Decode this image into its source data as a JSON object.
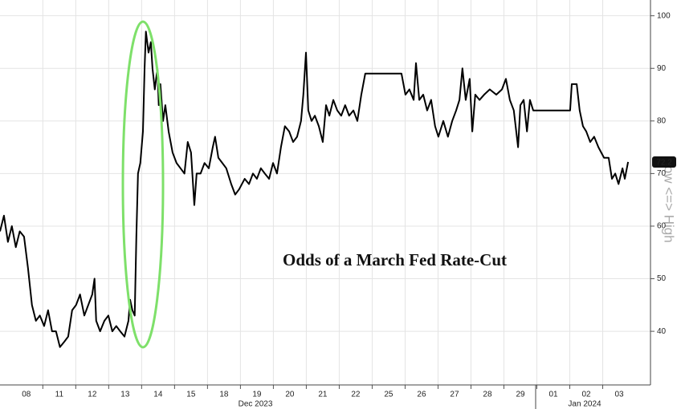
{
  "chart_data": {
    "type": "line",
    "annotation": "Odds of a March Fed Rate-Cut",
    "y_label": "Low <=> High",
    "x_group_labels": [
      "Dec 2023",
      "Jan 2024"
    ],
    "xlim": [
      -0.8,
      18.95
    ],
    "xticks": [
      {
        "value": 0,
        "label": "08"
      },
      {
        "value": 1,
        "label": "11"
      },
      {
        "value": 2,
        "label": "12"
      },
      {
        "value": 3,
        "label": "13"
      },
      {
        "value": 4,
        "label": "14"
      },
      {
        "value": 5,
        "label": "15"
      },
      {
        "value": 6,
        "label": "18"
      },
      {
        "value": 7,
        "label": "19"
      },
      {
        "value": 8,
        "label": "20"
      },
      {
        "value": 9,
        "label": "21"
      },
      {
        "value": 10,
        "label": "22"
      },
      {
        "value": 11,
        "label": "25"
      },
      {
        "value": 12,
        "label": "26"
      },
      {
        "value": 13,
        "label": "27"
      },
      {
        "value": 14,
        "label": "28"
      },
      {
        "value": 15,
        "label": "29"
      },
      {
        "value": 16,
        "label": "01"
      },
      {
        "value": 17,
        "label": "02"
      },
      {
        "value": 18,
        "label": "03"
      }
    ],
    "ylim": [
      29.8,
      103
    ],
    "yticks": [
      40,
      50,
      60,
      70,
      80,
      90,
      100
    ],
    "grid": true,
    "series": [
      {
        "name": "Odds",
        "color": "#000000",
        "x": [
          -0.8,
          -0.68,
          -0.56,
          -0.44,
          -0.32,
          -0.2,
          -0.07,
          0.05,
          0.17,
          0.29,
          0.41,
          0.54,
          0.66,
          0.78,
          0.9,
          1.02,
          1.15,
          1.27,
          1.39,
          1.51,
          1.63,
          1.76,
          1.88,
          2.0,
          2.07,
          2.12,
          2.24,
          2.37,
          2.49,
          2.61,
          2.73,
          2.85,
          2.98,
          3.1,
          3.15,
          3.22,
          3.29,
          3.34,
          3.39,
          3.46,
          3.54,
          3.59,
          3.63,
          3.71,
          3.78,
          3.83,
          3.9,
          3.98,
          4.02,
          4.07,
          4.15,
          4.22,
          4.32,
          4.44,
          4.56,
          4.68,
          4.8,
          4.9,
          5.0,
          5.1,
          5.17,
          5.29,
          5.41,
          5.54,
          5.66,
          5.73,
          5.83,
          5.95,
          6.07,
          6.22,
          6.34,
          6.46,
          6.63,
          6.76,
          6.88,
          7.0,
          7.12,
          7.24,
          7.37,
          7.49,
          7.61,
          7.73,
          7.85,
          7.98,
          8.1,
          8.22,
          8.34,
          8.41,
          8.49,
          8.56,
          8.66,
          8.76,
          8.88,
          9.0,
          9.1,
          9.2,
          9.32,
          9.44,
          9.56,
          9.68,
          9.8,
          9.93,
          10.05,
          10.17,
          10.29,
          10.41,
          11.39,
          11.51,
          11.63,
          11.76,
          11.83,
          11.93,
          12.05,
          12.17,
          12.29,
          12.41,
          12.51,
          12.66,
          12.8,
          12.93,
          13.05,
          13.15,
          13.24,
          13.34,
          13.46,
          13.54,
          13.63,
          13.76,
          13.9,
          14.07,
          14.27,
          14.44,
          14.56,
          14.68,
          14.8,
          14.93,
          15.0,
          15.1,
          15.2,
          15.29,
          15.39,
          16.51,
          16.56,
          16.71,
          16.8,
          16.9,
          17.0,
          17.12,
          17.24,
          17.37,
          17.54,
          17.68,
          17.78,
          17.88,
          17.98,
          18.1,
          18.17,
          18.27
        ],
        "values": [
          59,
          62,
          57,
          60,
          56,
          59,
          58,
          52,
          45,
          42,
          43,
          41,
          44,
          40,
          40,
          37,
          38,
          39,
          44,
          45,
          47,
          43,
          45,
          47,
          50,
          42,
          40,
          42,
          43,
          40,
          41,
          40,
          39,
          42,
          46,
          44,
          43,
          58,
          70,
          72,
          78,
          90,
          97,
          93,
          95,
          90,
          86,
          90,
          83,
          87,
          80,
          83,
          78,
          74,
          72,
          71,
          70,
          76,
          74,
          64,
          70,
          70,
          72,
          71,
          75,
          77,
          73,
          72,
          71,
          68,
          66,
          67,
          69,
          68,
          70,
          69,
          71,
          70,
          69,
          72,
          70,
          75,
          79,
          78,
          76,
          77,
          80,
          85,
          93,
          82,
          80,
          81,
          79,
          76,
          83,
          81,
          84,
          82,
          81,
          83,
          81,
          82,
          80,
          85,
          89,
          89,
          89,
          85,
          86,
          84,
          91,
          84,
          85,
          82,
          84,
          79,
          77,
          80,
          77,
          80,
          82,
          84,
          90,
          84,
          88,
          78,
          85,
          84,
          85,
          86,
          85,
          86,
          88,
          84,
          82,
          75,
          83,
          84,
          78,
          84,
          82,
          82,
          87,
          87,
          82,
          79,
          78,
          76,
          77,
          75,
          73,
          73,
          69,
          70,
          68,
          71,
          69,
          72.2
        ]
      }
    ]
  }
}
